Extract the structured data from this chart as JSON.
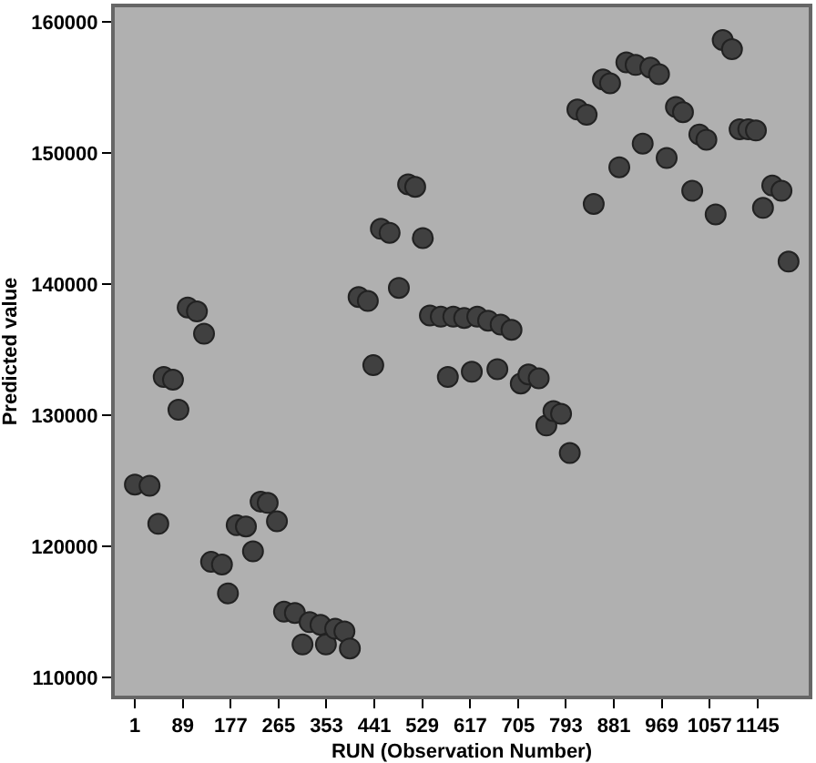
{
  "chart_data": {
    "type": "scatter",
    "xlabel": "RUN (Observation Number)",
    "ylabel": "Predicted value",
    "x": [
      1,
      28,
      44,
      54,
      71,
      81,
      98,
      115,
      128,
      141,
      161,
      172,
      188,
      205,
      218,
      232,
      245,
      262,
      275,
      295,
      309,
      322,
      342,
      352,
      369,
      386,
      396,
      412,
      429,
      439,
      453,
      469,
      486,
      503,
      516,
      530,
      543,
      563,
      576,
      586,
      606,
      620,
      630,
      650,
      667,
      673,
      693,
      710,
      724,
      743,
      757,
      770,
      784,
      800,
      814,
      831,
      844,
      861,
      874,
      891,
      904,
      921,
      934,
      948,
      964,
      978,
      995,
      1008,
      1025,
      1038,
      1051,
      1068,
      1081,
      1098,
      1112,
      1128,
      1142,
      1155,
      1172,
      1189,
      1202
    ],
    "values": [
      124700,
      124600,
      121700,
      132900,
      132700,
      130400,
      138200,
      137900,
      136200,
      118800,
      118600,
      116400,
      121600,
      121500,
      119600,
      123400,
      123300,
      121900,
      115000,
      114900,
      112500,
      114200,
      114000,
      112500,
      113700,
      113500,
      112200,
      139000,
      138700,
      133800,
      144200,
      143900,
      139700,
      147600,
      147400,
      143500,
      137600,
      137500,
      132900,
      137500,
      137400,
      133300,
      137500,
      137200,
      133500,
      136900,
      136500,
      132400,
      133100,
      132800,
      129200,
      130300,
      130100,
      127100,
      153300,
      152900,
      146100,
      155600,
      155300,
      148900,
      156900,
      156700,
      150700,
      156500,
      156000,
      149600,
      153500,
      153100,
      147100,
      151400,
      151000,
      145300,
      158600,
      157900,
      151800,
      151800,
      151700,
      145800,
      147500,
      147100,
      141700
    ],
    "color": "#404040",
    "marker": "circle",
    "grid": false,
    "xlim": [
      -36,
      1239
    ],
    "ylim": [
      108600,
      161100
    ],
    "xticks": [
      1,
      89,
      177,
      265,
      353,
      441,
      529,
      617,
      705,
      793,
      881,
      969,
      1057,
      1145
    ],
    "yticks": [
      110000,
      120000,
      130000,
      140000,
      150000,
      160000
    ]
  }
}
